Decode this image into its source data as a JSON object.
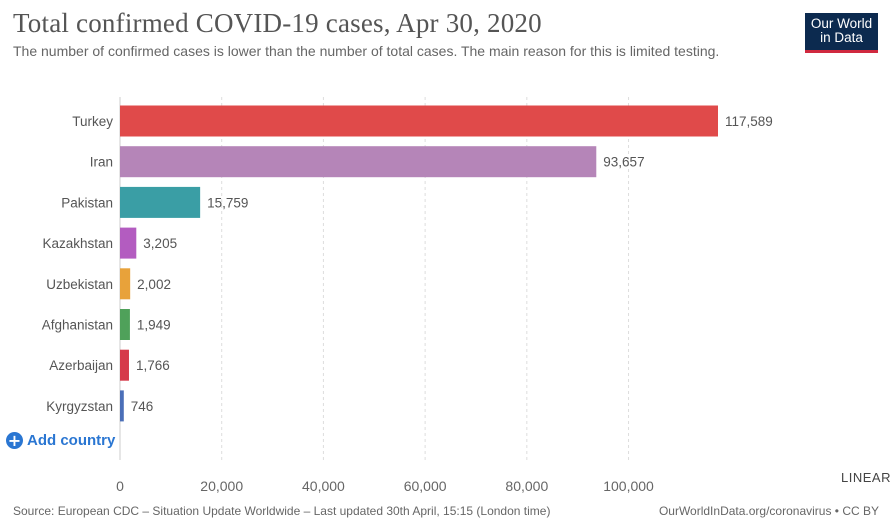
{
  "header": {
    "title": "Total confirmed COVID-19 cases, Apr 30, 2020",
    "subtitle": "The number of confirmed cases is lower than the number of total cases. The main reason for this is limited testing.",
    "logo_line1": "Our World",
    "logo_line2": "in Data"
  },
  "controls": {
    "add_country_label": "Add country",
    "add_icon": "plus-circle-icon",
    "scale_label": "LINEAR"
  },
  "footer": {
    "source": "Source: European CDC – Situation Update Worldwide – Last updated 30th April, 15:15 (London time)",
    "link": "OurWorldInData.org/coronavirus • CC BY"
  },
  "colors": {
    "logo_bg": "#0c2a4f",
    "logo_accent": "#d0293f",
    "link_blue": "#2a76d2"
  },
  "chart_data": {
    "type": "bar",
    "orientation": "horizontal",
    "categories": [
      "Turkey",
      "Iran",
      "Pakistan",
      "Kazakhstan",
      "Uzbekistan",
      "Afghanistan",
      "Azerbaijan",
      "Kyrgyzstan"
    ],
    "values": [
      117589,
      93657,
      15759,
      3205,
      2002,
      1949,
      1766,
      746
    ],
    "value_labels": [
      "117,589",
      "93,657",
      "15,759",
      "3,205",
      "2,002",
      "1,949",
      "1,766",
      "746"
    ],
    "colors": [
      "#e04a4a",
      "#b585b8",
      "#3a9ea5",
      "#b35cc0",
      "#e8a23a",
      "#4fa15a",
      "#d63a4a",
      "#4b6fb8"
    ],
    "xlim": [
      0,
      117589
    ],
    "xticks": [
      0,
      20000,
      40000,
      60000,
      80000,
      100000
    ],
    "xtick_labels": [
      "0",
      "20,000",
      "40,000",
      "60,000",
      "80,000",
      "100,000"
    ],
    "grid": "vertical-dashed",
    "scale": "linear"
  }
}
